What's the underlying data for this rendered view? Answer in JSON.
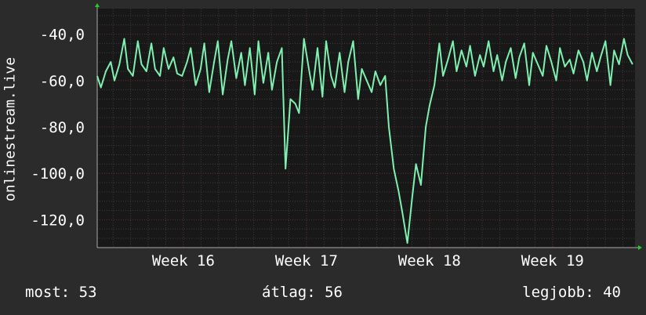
{
  "chart_data": {
    "type": "line",
    "ylabel": "onlinestream.live",
    "ylim": [
      -132,
      -29
    ],
    "yticks": [
      -40,
      -60,
      -80,
      -100,
      -120
    ],
    "ytick_labels": [
      "-40,0",
      "-60,0",
      "-80,0",
      "-100,0",
      "-120,0"
    ],
    "xlim": [
      15.3,
      19.67
    ],
    "xticks": [
      16,
      17,
      18,
      19
    ],
    "xtick_labels": [
      "Week  16",
      "Week  17",
      "Week  18",
      "Week  19"
    ],
    "grid": true,
    "colors": {
      "background": "#2b2b2b",
      "plot": "#181818",
      "line": "#7ff0b0",
      "grid_major": "#5a2a2a",
      "grid_minor": "#3c3c3c",
      "axis": "#aaaaaa",
      "arrow": "#22cc22"
    },
    "series": [
      {
        "x": [
          15.3,
          15.33,
          15.37,
          15.41,
          15.44,
          15.48,
          15.52,
          15.55,
          15.59,
          15.63,
          15.66,
          15.7,
          15.74,
          15.77,
          15.81,
          15.84,
          15.88,
          15.92,
          15.95,
          15.99,
          16.03,
          16.06,
          16.1,
          16.14,
          16.17,
          16.21,
          16.25,
          16.28,
          16.32,
          16.36,
          16.39,
          16.43,
          16.47,
          16.5,
          16.54,
          16.58,
          16.61,
          16.65,
          16.69,
          16.72,
          16.76,
          16.8,
          16.83,
          16.87,
          16.91,
          16.94,
          16.98,
          17.02,
          17.05,
          17.09,
          17.13,
          17.16,
          17.2,
          17.23,
          17.27,
          17.31,
          17.34,
          17.38,
          17.42,
          17.45,
          17.49,
          17.53,
          17.56,
          17.6,
          17.64,
          17.67,
          17.71,
          17.75,
          17.78,
          17.82,
          17.86,
          17.89,
          17.93,
          17.97,
          18.0,
          18.04,
          18.08,
          18.11,
          18.15,
          18.19,
          18.22,
          18.26,
          18.3,
          18.33,
          18.37,
          18.41,
          18.44,
          18.48,
          18.52,
          18.55,
          18.59,
          18.62,
          18.66,
          18.7,
          18.73,
          18.77,
          18.81,
          18.84,
          18.88,
          18.92,
          18.95,
          18.99,
          19.03,
          19.06,
          19.1,
          19.14,
          19.17,
          19.21,
          19.25,
          19.28,
          19.32,
          19.36,
          19.39,
          19.43,
          19.47,
          19.5,
          19.54,
          19.58,
          19.61,
          19.65
        ],
        "y": [
          -58,
          -63,
          -56,
          -52,
          -60,
          -53,
          -42,
          -55,
          -58,
          -43,
          -53,
          -56,
          -44,
          -55,
          -58,
          -46,
          -55,
          -50,
          -57,
          -58,
          -52,
          -46,
          -62,
          -55,
          -44,
          -65,
          -52,
          -43,
          -66,
          -51,
          -43,
          -59,
          -48,
          -62,
          -46,
          -66,
          -43,
          -61,
          -48,
          -64,
          -52,
          -46,
          -98,
          -68,
          -70,
          -74,
          -42,
          -55,
          -64,
          -46,
          -67,
          -43,
          -58,
          -63,
          -48,
          -65,
          -52,
          -43,
          -68,
          -55,
          -60,
          -65,
          -56,
          -62,
          -58,
          -80,
          -98,
          -108,
          -117,
          -130,
          -110,
          -96,
          -105,
          -80,
          -71,
          -62,
          -44,
          -58,
          -51,
          -43,
          -56,
          -47,
          -54,
          -45,
          -58,
          -49,
          -54,
          -43,
          -56,
          -49,
          -60,
          -52,
          -46,
          -59,
          -50,
          -44,
          -62,
          -48,
          -53,
          -58,
          -45,
          -52,
          -60,
          -46,
          -54,
          -51,
          -57,
          -47,
          -52,
          -60,
          -48,
          -56,
          -50,
          -43,
          -62,
          -47,
          -53,
          -42,
          -49,
          -53
        ]
      }
    ]
  },
  "stats": {
    "now": "most:  53",
    "avg": "átlag:  56",
    "best": "legjobb:  40"
  }
}
